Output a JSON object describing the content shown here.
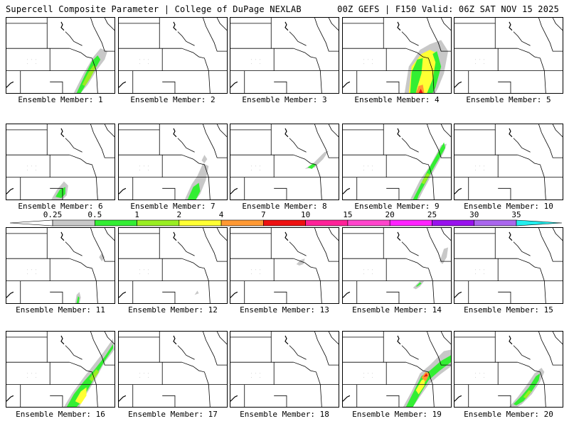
{
  "header": {
    "left": "Supercell Composite Parameter | College of DuPage NEXLAB",
    "right": "00Z GEFS | F150 Valid: 06Z SAT NOV 15 2025"
  },
  "panels": [
    {
      "label": "Ensemble Member: 1"
    },
    {
      "label": "Ensemble Member: 2"
    },
    {
      "label": "Ensemble Member: 3"
    },
    {
      "label": "Ensemble Member: 4"
    },
    {
      "label": "Ensemble Member: 5"
    },
    {
      "label": "Ensemble Member: 6"
    },
    {
      "label": "Ensemble Member: 7"
    },
    {
      "label": "Ensemble Member: 8"
    },
    {
      "label": "Ensemble Member: 9"
    },
    {
      "label": "Ensemble Member: 10"
    },
    {
      "label": "Ensemble Member: 11"
    },
    {
      "label": "Ensemble Member: 12"
    },
    {
      "label": "Ensemble Member: 13"
    },
    {
      "label": "Ensemble Member: 14"
    },
    {
      "label": "Ensemble Member: 15"
    },
    {
      "label": "Ensemble Member: 16"
    },
    {
      "label": "Ensemble Member: 17"
    },
    {
      "label": "Ensemble Member: 18"
    },
    {
      "label": "Ensemble Member: 19"
    },
    {
      "label": "Ensemble Member: 20"
    }
  ],
  "colorbar": {
    "labels": [
      "0.25",
      "0.5",
      "1",
      "2",
      "4",
      "7",
      "10",
      "15",
      "20",
      "25",
      "30",
      "35"
    ],
    "colors": [
      "#c8c8c8",
      "#33ee33",
      "#99ee22",
      "#ffff33",
      "#ff9933",
      "#ee1111",
      "#ff2299",
      "#ff44cc",
      "#ff22ff",
      "#9911ee",
      "#aa66ee",
      "#22eeee"
    ]
  }
}
